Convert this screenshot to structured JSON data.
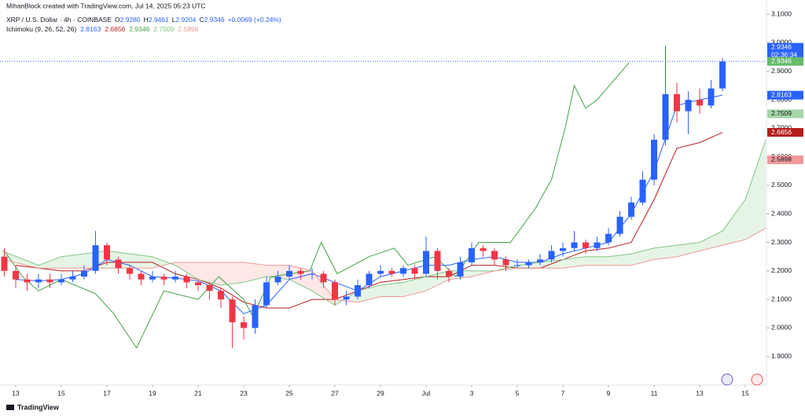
{
  "chart_data": {
    "type": "candlestick",
    "watermark": "MihanBlock created with TradingView.com, Jul 14, 2025 05:23 UTC",
    "title": "XRP / U.S. Dollar · 4h · COINBASE",
    "ohlc": [
      {
        "label": "O",
        "value": "2.9280"
      },
      {
        "label": "H",
        "value": "2.9461"
      },
      {
        "label": "L",
        "value": "2.9204"
      },
      {
        "label": "C",
        "value": "2.9346"
      }
    ],
    "change": "+0.0069 (+0.24%)",
    "indicator": {
      "name": "Ichimoku (9, 26, 52, 26)",
      "values": [
        "2.8163",
        "2.6856",
        "2.9346",
        "2.7509",
        "2.5898"
      ]
    },
    "footer": "TradingView",
    "up_color": "#2962ff",
    "down_color": "#f23645",
    "xlim": [
      -0.69,
      32.93
    ],
    "ylim": [
      1.8,
      3.15
    ],
    "xticks": [
      {
        "value": 0,
        "label": "13"
      },
      {
        "value": 2,
        "label": "15"
      },
      {
        "value": 4,
        "label": "17"
      },
      {
        "value": 6,
        "label": "19"
      },
      {
        "value": 8,
        "label": "21"
      },
      {
        "value": 10,
        "label": "23"
      },
      {
        "value": 12,
        "label": "25"
      },
      {
        "value": 14,
        "label": "27"
      },
      {
        "value": 16,
        "label": "29"
      },
      {
        "value": 18,
        "label": "Jul"
      },
      {
        "value": 20,
        "label": "3"
      },
      {
        "value": 22,
        "label": "5"
      },
      {
        "value": 24,
        "label": "7"
      },
      {
        "value": 26,
        "label": "9"
      },
      {
        "value": 28,
        "label": "11"
      },
      {
        "value": 30,
        "label": "13"
      },
      {
        "value": 32,
        "label": "15"
      }
    ],
    "yticks": [
      {
        "value": 1.9,
        "label": "1.9000"
      },
      {
        "value": 2.0,
        "label": "2.0000"
      },
      {
        "value": 2.1,
        "label": "2.1000"
      },
      {
        "value": 2.2,
        "label": "2.2000"
      },
      {
        "value": 2.3,
        "label": "2.3000"
      },
      {
        "value": 2.4,
        "label": "2.4000"
      },
      {
        "value": 2.5,
        "label": "2.5000"
      },
      {
        "value": 2.6,
        "label": "2.6000"
      },
      {
        "value": 2.7,
        "label": "2.7000"
      },
      {
        "value": 2.8,
        "label": "2.8000"
      },
      {
        "value": 2.9,
        "label": "2.9000"
      },
      {
        "value": 3.0,
        "label": "3.0000"
      },
      {
        "value": 3.1,
        "label": "3.1000"
      }
    ],
    "grid": false,
    "x": [
      -0.5,
      0,
      0.5,
      1,
      1.5,
      2,
      2.5,
      3,
      3.5,
      4,
      4.5,
      5,
      5.5,
      6,
      6.5,
      7,
      7.5,
      8,
      8.5,
      9,
      9.5,
      10,
      10.5,
      11,
      11.5,
      12,
      12.5,
      13,
      13.5,
      14,
      14.5,
      15,
      15.5,
      16,
      16.5,
      17,
      17.5,
      18,
      18.5,
      19,
      19.5,
      20,
      20.5,
      21,
      21.5,
      22,
      22.5,
      23,
      23.5,
      24,
      24.5,
      25,
      25.5,
      26,
      26.5,
      27,
      27.5,
      28,
      28.5,
      29,
      29.5,
      30,
      30.5,
      31
    ],
    "open": [
      2.25,
      2.2,
      2.17,
      2.16,
      2.17,
      2.16,
      2.17,
      2.18,
      2.2,
      2.29,
      2.24,
      2.21,
      2.19,
      2.17,
      2.18,
      2.17,
      2.18,
      2.16,
      2.15,
      2.13,
      2.1,
      2.02,
      2.0,
      2.08,
      2.16,
      2.18,
      2.2,
      2.19,
      2.19,
      2.16,
      2.1,
      2.11,
      2.15,
      2.19,
      2.2,
      2.19,
      2.21,
      2.19,
      2.27,
      2.2,
      2.18,
      2.23,
      2.28,
      2.27,
      2.24,
      2.22,
      2.22,
      2.23,
      2.24,
      2.27,
      2.28,
      2.3,
      2.28,
      2.3,
      2.33,
      2.39,
      2.44,
      2.52,
      2.66,
      2.82,
      2.76,
      2.8,
      2.78,
      2.84
    ],
    "high": [
      2.28,
      2.22,
      2.19,
      2.19,
      2.19,
      2.19,
      2.2,
      2.22,
      2.34,
      2.3,
      2.25,
      2.22,
      2.2,
      2.2,
      2.19,
      2.2,
      2.19,
      2.17,
      2.16,
      2.14,
      2.11,
      2.04,
      2.1,
      2.18,
      2.2,
      2.22,
      2.21,
      2.21,
      2.2,
      2.17,
      2.13,
      2.17,
      2.2,
      2.22,
      2.21,
      2.22,
      2.22,
      2.32,
      2.28,
      2.21,
      2.25,
      2.3,
      2.29,
      2.28,
      2.25,
      2.24,
      2.24,
      2.26,
      2.29,
      2.3,
      2.34,
      2.31,
      2.32,
      2.35,
      2.41,
      2.46,
      2.55,
      2.68,
      2.99,
      2.86,
      2.83,
      2.84,
      2.87,
      2.9461
    ],
    "low": [
      2.18,
      2.14,
      2.13,
      2.14,
      2.14,
      2.15,
      2.16,
      2.17,
      2.19,
      2.22,
      2.19,
      2.17,
      2.15,
      2.16,
      2.15,
      2.16,
      2.14,
      2.13,
      2.1,
      2.07,
      1.93,
      1.96,
      1.98,
      2.07,
      2.15,
      2.17,
      2.17,
      2.17,
      2.14,
      2.08,
      2.08,
      2.1,
      2.14,
      2.18,
      2.18,
      2.18,
      2.17,
      2.18,
      2.17,
      2.16,
      2.17,
      2.22,
      2.25,
      2.22,
      2.2,
      2.21,
      2.21,
      2.22,
      2.23,
      2.25,
      2.27,
      2.26,
      2.27,
      2.29,
      2.32,
      2.38,
      2.43,
      2.5,
      2.64,
      2.72,
      2.68,
      2.75,
      2.77,
      2.83
    ],
    "close": [
      2.2,
      2.17,
      2.16,
      2.17,
      2.16,
      2.17,
      2.18,
      2.2,
      2.29,
      2.24,
      2.21,
      2.19,
      2.17,
      2.18,
      2.17,
      2.18,
      2.16,
      2.15,
      2.13,
      2.1,
      2.02,
      2.0,
      2.08,
      2.16,
      2.18,
      2.2,
      2.19,
      2.19,
      2.16,
      2.1,
      2.11,
      2.15,
      2.19,
      2.2,
      2.19,
      2.21,
      2.19,
      2.27,
      2.2,
      2.18,
      2.23,
      2.28,
      2.27,
      2.24,
      2.22,
      2.22,
      2.23,
      2.24,
      2.27,
      2.28,
      2.3,
      2.28,
      2.3,
      2.33,
      2.39,
      2.44,
      2.52,
      2.66,
      2.82,
      2.76,
      2.8,
      2.78,
      2.84,
      2.9346
    ],
    "series": [
      {
        "color": "#2962ff",
        "x": [
          0,
          1,
          2,
          3,
          4,
          5,
          6,
          7,
          8,
          9,
          10,
          11,
          12,
          13,
          14,
          15,
          16,
          17,
          18,
          19,
          20,
          21,
          22,
          23,
          24,
          25,
          26,
          27,
          28,
          29,
          30,
          31
        ],
        "values": [
          2.17,
          2.165,
          2.17,
          2.19,
          2.24,
          2.22,
          2.18,
          2.175,
          2.165,
          2.13,
          2.05,
          2.08,
          2.17,
          2.19,
          2.16,
          2.13,
          2.18,
          2.2,
          2.22,
          2.22,
          2.24,
          2.25,
          2.23,
          2.23,
          2.26,
          2.28,
          2.3,
          2.4,
          2.55,
          2.78,
          2.8,
          2.8163
        ]
      },
      {
        "color": "#b71c1c",
        "x": [
          0,
          1,
          2,
          3,
          4,
          5,
          6,
          7,
          8,
          9,
          10,
          11,
          12,
          13,
          14,
          15,
          16,
          17,
          18,
          19,
          20,
          21,
          22,
          23,
          24,
          25,
          26,
          27,
          28,
          29,
          30,
          31
        ],
        "values": [
          2.22,
          2.21,
          2.2,
          2.2,
          2.23,
          2.23,
          2.23,
          2.19,
          2.17,
          2.14,
          2.09,
          2.07,
          2.07,
          2.1,
          2.1,
          2.13,
          2.16,
          2.17,
          2.18,
          2.18,
          2.22,
          2.22,
          2.21,
          2.21,
          2.24,
          2.27,
          2.28,
          2.3,
          2.45,
          2.63,
          2.65,
          2.6856
        ]
      },
      {
        "color": "#43a047",
        "x": [
          -0.5,
          0.3,
          1,
          2,
          3.5,
          4.3,
          5.3,
          6.5,
          8,
          8.9,
          10,
          10.4,
          11.2,
          12.9,
          13.4,
          14.1,
          15.5,
          16.6,
          17.2,
          18.4,
          19.3,
          20.3,
          21.7,
          22.8,
          23.5,
          24.1,
          24.5,
          25,
          25.5,
          26.9
        ],
        "values": [
          2.27,
          2.18,
          2.13,
          2.17,
          2.12,
          2.05,
          1.93,
          2.13,
          2.1,
          2.18,
          2.1,
          2.04,
          2.18,
          2.2,
          2.3,
          2.19,
          2.25,
          2.28,
          2.22,
          2.25,
          2.18,
          2.3,
          2.3,
          2.42,
          2.52,
          2.7,
          2.85,
          2.77,
          2.8,
          2.93
        ]
      },
      {
        "color": "#81c784",
        "x": [
          -0.6,
          1,
          2,
          3,
          4,
          5,
          6,
          7,
          8,
          9,
          10,
          11,
          12,
          13,
          14,
          15,
          16,
          17,
          18,
          19,
          20,
          21,
          22,
          23,
          24,
          25,
          26,
          27,
          28,
          29,
          30,
          31,
          32,
          32.9
        ],
        "values": [
          2.27,
          2.22,
          2.25,
          2.26,
          2.27,
          2.26,
          2.25,
          2.22,
          2.17,
          2.15,
          2.16,
          2.18,
          2.17,
          2.13,
          2.08,
          2.13,
          2.15,
          2.16,
          2.18,
          2.2,
          2.2,
          2.2,
          2.22,
          2.23,
          2.24,
          2.25,
          2.25,
          2.26,
          2.28,
          2.29,
          2.3,
          2.34,
          2.45,
          2.66
        ]
      },
      {
        "color": "#ef9a9a",
        "x": [
          -0.6,
          1,
          2,
          3,
          4,
          5,
          6,
          7,
          8,
          9,
          10,
          11,
          12,
          13,
          14,
          15,
          16,
          17,
          18,
          19,
          20,
          21,
          22,
          23,
          24,
          25,
          26,
          27,
          28,
          29,
          30,
          31,
          32,
          32.9
        ],
        "values": [
          2.24,
          2.21,
          2.21,
          2.21,
          2.21,
          2.21,
          2.21,
          2.23,
          2.23,
          2.23,
          2.23,
          2.22,
          2.22,
          2.2,
          2.1,
          2.09,
          2.11,
          2.11,
          2.13,
          2.17,
          2.18,
          2.2,
          2.21,
          2.21,
          2.21,
          2.22,
          2.22,
          2.22,
          2.24,
          2.25,
          2.27,
          2.29,
          2.31,
          2.35
        ]
      }
    ],
    "cloud_colors": {
      "up": "rgba(76,175,80,0.14)",
      "down": "rgba(244,67,54,0.13)"
    },
    "price_labels": [
      {
        "value": 2.9346,
        "label": "2.9346",
        "countdown": "02:36:34",
        "color": "#2962ff"
      },
      {
        "value": 2.9346,
        "label": "2.9346",
        "color": "#66bb6a"
      },
      {
        "value": 2.8163,
        "label": "2.8163",
        "color": "#2962ff"
      },
      {
        "value": 2.7509,
        "label": "2.7509",
        "color": "#a5d6a7"
      },
      {
        "value": 2.6856,
        "label": "2.6856",
        "color": "#b71c1c"
      },
      {
        "value": 2.5898,
        "label": "2.5898",
        "color": "#ef9a9a"
      }
    ]
  }
}
